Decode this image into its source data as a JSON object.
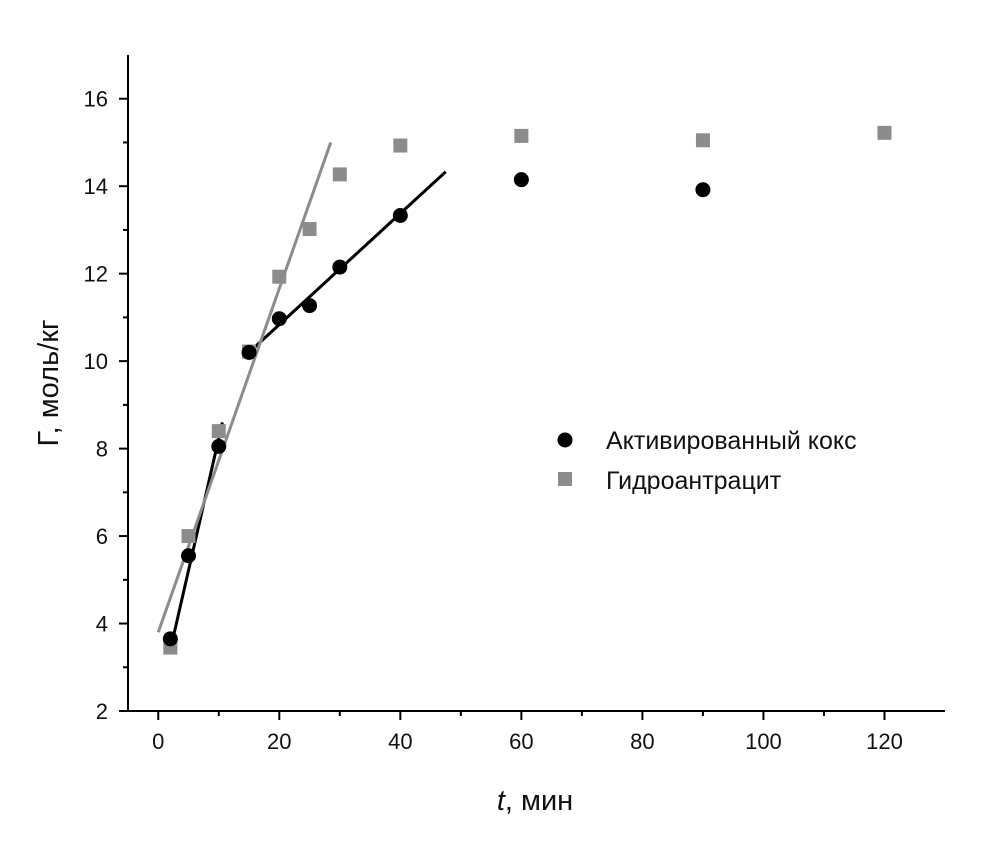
{
  "chart_data": {
    "type": "scatter",
    "title": "",
    "xlabel_italic": "t",
    "xlabel_rest": ", мин",
    "ylabel": "Г, моль/кг",
    "xlim": [
      -5,
      130
    ],
    "ylim": [
      2,
      17
    ],
    "xticks": [
      0,
      20,
      40,
      60,
      80,
      100,
      120
    ],
    "yticks": [
      2,
      4,
      6,
      8,
      10,
      12,
      14,
      16
    ],
    "grid": false,
    "legend_position": "center-right",
    "series": [
      {
        "name": "Активированный кокс",
        "marker": "circle",
        "color": "#000000",
        "x": [
          2,
          5,
          10,
          15,
          20,
          25,
          30,
          40,
          60,
          90
        ],
        "y": [
          3.65,
          5.55,
          8.05,
          10.2,
          10.97,
          11.27,
          12.15,
          13.33,
          14.15,
          13.92
        ]
      },
      {
        "name": "Гидроантрацит",
        "marker": "square",
        "color": "#8c8c8c",
        "x": [
          2,
          5,
          10,
          15,
          20,
          25,
          30,
          40,
          60,
          90,
          120
        ],
        "y": [
          3.45,
          6.0,
          8.4,
          10.22,
          11.93,
          13.02,
          14.27,
          14.93,
          15.15,
          15.05,
          15.22
        ]
      }
    ],
    "fit_lines": [
      {
        "series": "Активированный кокс",
        "color": "#000000",
        "x": [
          2,
          10.6
        ],
        "y": [
          3.4,
          8.6
        ]
      },
      {
        "series": "Активированный кокс",
        "color": "#000000",
        "x": [
          15,
          47.5
        ],
        "y": [
          10.2,
          14.33
        ]
      },
      {
        "series": "Гидроантрацит",
        "color": "#8c8c8c",
        "x": [
          0,
          28.5
        ],
        "y": [
          3.8,
          15.0
        ]
      }
    ]
  }
}
